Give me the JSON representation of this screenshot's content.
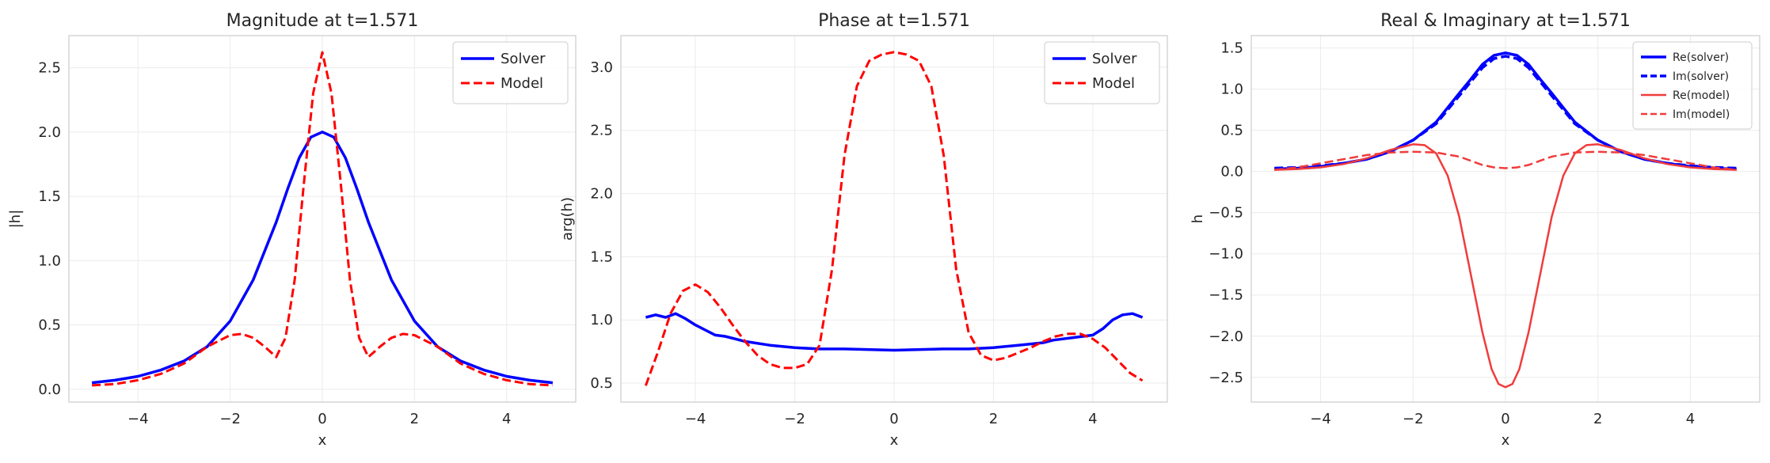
{
  "chart_data": [
    {
      "type": "line",
      "title": "Magnitude at t=1.571",
      "xlabel": "x",
      "ylabel": "|h|",
      "xlim": [
        -5.5,
        5.5
      ],
      "ylim": [
        -0.1,
        2.75
      ],
      "xticks": [
        -4,
        -2,
        0,
        2,
        4
      ],
      "xtick_labels": [
        "−4",
        "−2",
        "0",
        "2",
        "4"
      ],
      "yticks": [
        0.0,
        0.5,
        1.0,
        1.5,
        2.0,
        2.5
      ],
      "ytick_labels": [
        "0.0",
        "0.5",
        "1.0",
        "1.5",
        "2.0",
        "2.5"
      ],
      "grid": true,
      "legend_position": "top-right",
      "series": [
        {
          "name": "Solver",
          "color": "#0000ff",
          "style": "solid",
          "width": 3.5,
          "x": [
            -5,
            -4.5,
            -4,
            -3.5,
            -3,
            -2.5,
            -2,
            -1.5,
            -1,
            -0.75,
            -0.5,
            -0.25,
            0,
            0.25,
            0.5,
            0.75,
            1,
            1.5,
            2,
            2.5,
            3,
            3.5,
            4,
            4.5,
            5
          ],
          "y": [
            0.05,
            0.07,
            0.1,
            0.15,
            0.22,
            0.33,
            0.53,
            0.85,
            1.3,
            1.56,
            1.8,
            1.96,
            2.0,
            1.96,
            1.8,
            1.56,
            1.3,
            0.85,
            0.53,
            0.33,
            0.22,
            0.15,
            0.1,
            0.07,
            0.05
          ]
        },
        {
          "name": "Model",
          "color": "#ff0000",
          "style": "dashed",
          "width": 3,
          "x": [
            -5,
            -4.5,
            -4,
            -3.5,
            -3,
            -2.5,
            -2,
            -1.75,
            -1.5,
            -1.25,
            -1,
            -0.8,
            -0.6,
            -0.4,
            -0.2,
            0,
            0.2,
            0.4,
            0.6,
            0.8,
            1,
            1.25,
            1.5,
            1.75,
            2,
            2.5,
            3,
            3.5,
            4,
            4.5,
            5
          ],
          "y": [
            0.03,
            0.04,
            0.07,
            0.12,
            0.2,
            0.33,
            0.42,
            0.43,
            0.4,
            0.33,
            0.25,
            0.4,
            0.85,
            1.6,
            2.3,
            2.62,
            2.3,
            1.6,
            0.85,
            0.4,
            0.25,
            0.33,
            0.4,
            0.43,
            0.42,
            0.33,
            0.2,
            0.12,
            0.07,
            0.04,
            0.03
          ]
        }
      ]
    },
    {
      "type": "line",
      "title": "Phase at t=1.571",
      "xlabel": "x",
      "ylabel": "arg(h)",
      "xlim": [
        -5.5,
        5.5
      ],
      "ylim": [
        0.35,
        3.25
      ],
      "xticks": [
        -4,
        -2,
        0,
        2,
        4
      ],
      "xtick_labels": [
        "−4",
        "−2",
        "0",
        "2",
        "4"
      ],
      "yticks": [
        0.5,
        1.0,
        1.5,
        2.0,
        2.5,
        3.0
      ],
      "ytick_labels": [
        "0.5",
        "1.0",
        "1.5",
        "2.0",
        "2.5",
        "3.0"
      ],
      "grid": true,
      "legend_position": "top-right",
      "series": [
        {
          "name": "Solver",
          "color": "#0000ff",
          "style": "solid",
          "width": 3.5,
          "x": [
            -5,
            -4.8,
            -4.6,
            -4.4,
            -4.2,
            -4,
            -3.8,
            -3.6,
            -3.4,
            -3.2,
            -3,
            -2.5,
            -2,
            -1.5,
            -1,
            0,
            1,
            1.5,
            2,
            2.5,
            3,
            3.2,
            3.4,
            3.6,
            3.8,
            4,
            4.2,
            4.4,
            4.6,
            4.8,
            5
          ],
          "y": [
            1.02,
            1.04,
            1.02,
            1.05,
            1.01,
            0.96,
            0.92,
            0.88,
            0.87,
            0.85,
            0.83,
            0.8,
            0.78,
            0.77,
            0.77,
            0.76,
            0.77,
            0.77,
            0.78,
            0.8,
            0.82,
            0.84,
            0.85,
            0.86,
            0.87,
            0.88,
            0.93,
            1.0,
            1.04,
            1.05,
            1.02
          ]
        },
        {
          "name": "Model",
          "color": "#ff0000",
          "style": "dashed",
          "width": 3,
          "x": [
            -5,
            -4.75,
            -4.5,
            -4.25,
            -4,
            -3.75,
            -3.5,
            -3.25,
            -3,
            -2.75,
            -2.5,
            -2.25,
            -2,
            -1.75,
            -1.5,
            -1.25,
            -1,
            -0.75,
            -0.5,
            -0.25,
            0,
            0.25,
            0.5,
            0.75,
            1,
            1.25,
            1.5,
            1.75,
            2,
            2.25,
            2.5,
            2.75,
            3,
            3.25,
            3.5,
            3.75,
            4,
            4.25,
            4.5,
            4.75,
            5
          ],
          "y": [
            0.48,
            0.75,
            1.05,
            1.23,
            1.28,
            1.22,
            1.1,
            0.96,
            0.83,
            0.72,
            0.65,
            0.62,
            0.62,
            0.65,
            0.8,
            1.4,
            2.3,
            2.85,
            3.05,
            3.1,
            3.12,
            3.1,
            3.05,
            2.85,
            2.3,
            1.4,
            0.9,
            0.72,
            0.68,
            0.7,
            0.74,
            0.78,
            0.83,
            0.87,
            0.89,
            0.89,
            0.85,
            0.78,
            0.68,
            0.58,
            0.52
          ]
        }
      ]
    },
    {
      "type": "line",
      "title": "Real & Imaginary at t=1.571",
      "xlabel": "x",
      "ylabel": "h",
      "xlim": [
        -5.5,
        5.5
      ],
      "ylim": [
        -2.8,
        1.65
      ],
      "xticks": [
        -4,
        -2,
        0,
        2,
        4
      ],
      "xtick_labels": [
        "−4",
        "−2",
        "0",
        "2",
        "4"
      ],
      "yticks": [
        -2.5,
        -2.0,
        -1.5,
        -1.0,
        -0.5,
        0.0,
        0.5,
        1.0,
        1.5
      ],
      "ytick_labels": [
        "−2.5",
        "−2.0",
        "−1.5",
        "−1.0",
        "−0.5",
        "0.0",
        "0.5",
        "1.0",
        "1.5"
      ],
      "grid": true,
      "legend_position": "top-right",
      "series": [
        {
          "name": "Re(solver)",
          "color": "#0000ff",
          "style": "solid",
          "width": 3.5,
          "x": [
            -5,
            -4.5,
            -4,
            -3.5,
            -3,
            -2.5,
            -2,
            -1.5,
            -1,
            -0.75,
            -0.5,
            -0.25,
            0,
            0.25,
            0.5,
            0.75,
            1,
            1.5,
            2,
            2.5,
            3,
            3.5,
            4,
            4.5,
            5
          ],
          "y": [
            0.03,
            0.04,
            0.06,
            0.1,
            0.15,
            0.24,
            0.38,
            0.6,
            0.95,
            1.12,
            1.3,
            1.41,
            1.44,
            1.41,
            1.3,
            1.12,
            0.95,
            0.6,
            0.38,
            0.24,
            0.15,
            0.1,
            0.06,
            0.04,
            0.03
          ]
        },
        {
          "name": "Im(solver)",
          "color": "#0000ff",
          "style": "dashed",
          "width": 3.5,
          "x": [
            -5,
            -4.5,
            -4,
            -3.5,
            -3,
            -2.5,
            -2,
            -1.5,
            -1,
            -0.75,
            -0.5,
            -0.25,
            0,
            0.25,
            0.5,
            0.75,
            1,
            1.5,
            2,
            2.5,
            3,
            3.5,
            4,
            4.5,
            5
          ],
          "y": [
            0.04,
            0.05,
            0.07,
            0.1,
            0.15,
            0.24,
            0.38,
            0.58,
            0.92,
            1.09,
            1.26,
            1.37,
            1.4,
            1.37,
            1.26,
            1.09,
            0.92,
            0.58,
            0.38,
            0.24,
            0.15,
            0.1,
            0.07,
            0.05,
            0.04
          ]
        },
        {
          "name": "Re(model)",
          "color": "#f03c3c",
          "style": "solid",
          "width": 2.5,
          "x": [
            -5,
            -4.5,
            -4,
            -3.5,
            -3,
            -2.5,
            -2,
            -1.75,
            -1.5,
            -1.25,
            -1,
            -0.75,
            -0.5,
            -0.3,
            -0.15,
            0,
            0.15,
            0.3,
            0.5,
            0.75,
            1,
            1.25,
            1.5,
            1.75,
            2,
            2.5,
            3,
            3.5,
            4,
            4.5,
            5
          ],
          "y": [
            0.02,
            0.03,
            0.05,
            0.09,
            0.16,
            0.26,
            0.33,
            0.32,
            0.22,
            -0.05,
            -0.55,
            -1.25,
            -1.95,
            -2.4,
            -2.58,
            -2.62,
            -2.58,
            -2.4,
            -1.95,
            -1.25,
            -0.55,
            -0.05,
            0.22,
            0.32,
            0.33,
            0.26,
            0.16,
            0.09,
            0.05,
            0.03,
            0.02
          ]
        },
        {
          "name": "Im(model)",
          "color": "#f03c3c",
          "style": "dashed",
          "width": 2.5,
          "x": [
            -5,
            -4.5,
            -4,
            -3.5,
            -3,
            -2.5,
            -2,
            -1.5,
            -1,
            -0.75,
            -0.5,
            -0.25,
            0,
            0.25,
            0.5,
            0.75,
            1,
            1.5,
            2,
            2.5,
            3,
            3.5,
            4,
            4.5,
            5
          ],
          "y": [
            0.02,
            0.05,
            0.1,
            0.15,
            0.2,
            0.23,
            0.24,
            0.23,
            0.18,
            0.13,
            0.08,
            0.05,
            0.04,
            0.05,
            0.08,
            0.13,
            0.18,
            0.23,
            0.24,
            0.23,
            0.2,
            0.15,
            0.1,
            0.05,
            0.02
          ]
        }
      ]
    }
  ]
}
